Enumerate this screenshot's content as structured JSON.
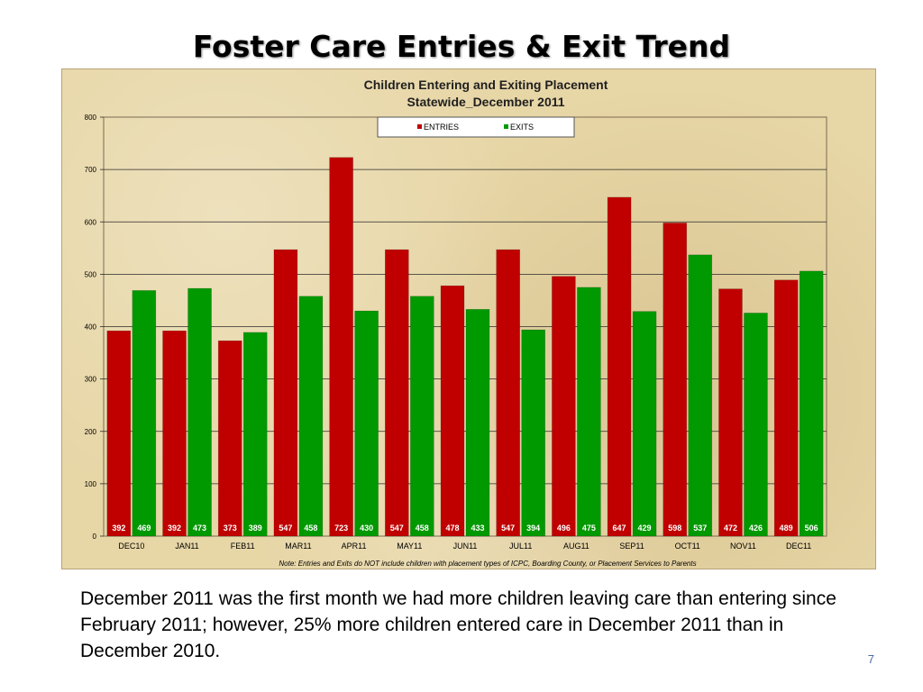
{
  "slide": {
    "title": "Foster Care Entries & Exit Trend",
    "caption": "December 2011 was the first month we had more children leaving care than entering since February 2011; however, 25% more children entered care in December 2011 than in December 2010.",
    "page_number": "7"
  },
  "chart_data": {
    "type": "bar",
    "title": "Children Entering and Exiting Placement",
    "subtitle": "Statewide_December  2011",
    "xlabel": "",
    "ylabel": "",
    "ylim": [
      0,
      800
    ],
    "yticks": [
      0,
      100,
      200,
      300,
      400,
      500,
      600,
      700,
      800
    ],
    "grid": true,
    "legend_position": "top-center",
    "categories": [
      "DEC10",
      "JAN11",
      "FEB11",
      "MAR11",
      "APR11",
      "MAY11",
      "JUN11",
      "JUL11",
      "AUG11",
      "SEP11",
      "OCT11",
      "NOV11",
      "DEC11"
    ],
    "series": [
      {
        "name": "ENTRIES",
        "color": "#c00000",
        "values": [
          392,
          392,
          373,
          547,
          723,
          547,
          478,
          547,
          496,
          647,
          598,
          472,
          489
        ]
      },
      {
        "name": "EXITS",
        "color": "#009900",
        "values": [
          469,
          473,
          389,
          458,
          430,
          458,
          433,
          394,
          475,
          429,
          537,
          426,
          506
        ]
      }
    ],
    "note": "Note:  Entries and Exits do NOT include children with placement types of ICPC, Boarding County, or Placement Services to Parents"
  }
}
